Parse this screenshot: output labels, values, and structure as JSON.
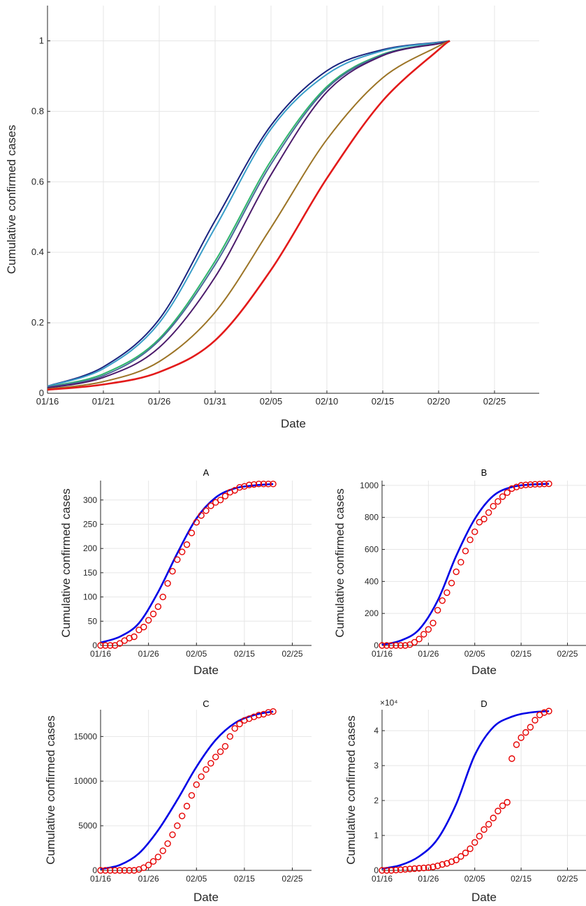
{
  "chart_data": [
    {
      "id": "main",
      "type": "line",
      "xlabel": "Date",
      "ylabel": "Cumulative confirmed cases",
      "x_ticks": [
        "01/16",
        "01/21",
        "01/26",
        "01/31",
        "02/05",
        "02/10",
        "02/15",
        "02/20",
        "02/25"
      ],
      "y_ticks": [
        "0",
        "0.2",
        "0.4",
        "0.6",
        "0.8",
        "1"
      ],
      "xlim": [
        "01/16",
        "02/29"
      ],
      "ylim": [
        0,
        1.1
      ],
      "grid": true,
      "series": [
        {
          "color": "#1a237e",
          "x": [
            "01/16",
            "01/21",
            "01/26",
            "01/31",
            "02/05",
            "02/10",
            "02/15",
            "02/20",
            "02/21"
          ],
          "values": [
            0.02,
            0.075,
            0.21,
            0.49,
            0.76,
            0.915,
            0.975,
            0.996,
            1.0
          ]
        },
        {
          "color": "#3a9ec9",
          "x": [
            "01/16",
            "01/21",
            "01/26",
            "01/31",
            "02/05",
            "02/10",
            "02/15",
            "02/20",
            "02/21"
          ],
          "values": [
            0.02,
            0.07,
            0.2,
            0.47,
            0.75,
            0.905,
            0.972,
            0.995,
            1.0
          ]
        },
        {
          "color": "#2db56b",
          "x": [
            "01/16",
            "01/21",
            "01/26",
            "01/31",
            "02/05",
            "02/10",
            "02/15",
            "02/20",
            "02/21"
          ],
          "values": [
            0.018,
            0.055,
            0.155,
            0.375,
            0.66,
            0.87,
            0.962,
            0.993,
            1.0
          ]
        },
        {
          "color": "#4a6a9a",
          "x": [
            "01/16",
            "01/21",
            "01/26",
            "01/31",
            "02/05",
            "02/10",
            "02/15",
            "02/20",
            "02/21"
          ],
          "values": [
            0.018,
            0.05,
            0.15,
            0.365,
            0.65,
            0.865,
            0.96,
            0.993,
            1.0
          ]
        },
        {
          "color": "#4b1a6b",
          "x": [
            "01/16",
            "01/21",
            "01/26",
            "01/31",
            "02/05",
            "02/10",
            "02/15",
            "02/20",
            "02/21"
          ],
          "values": [
            0.015,
            0.045,
            0.13,
            0.33,
            0.62,
            0.855,
            0.958,
            0.992,
            1.0
          ]
        },
        {
          "color": "#9c7426",
          "x": [
            "01/16",
            "01/21",
            "01/26",
            "01/31",
            "02/05",
            "02/10",
            "02/15",
            "02/20",
            "02/21"
          ],
          "values": [
            0.012,
            0.033,
            0.09,
            0.23,
            0.47,
            0.72,
            0.895,
            0.985,
            1.0
          ]
        },
        {
          "color": "#e31a1a",
          "x": [
            "01/16",
            "01/21",
            "01/26",
            "01/31",
            "02/05",
            "02/10",
            "02/15",
            "02/20",
            "02/21"
          ],
          "values": [
            0.01,
            0.025,
            0.06,
            0.15,
            0.35,
            0.61,
            0.83,
            0.975,
            1.0
          ]
        }
      ]
    },
    {
      "id": "A",
      "type": "line+scatter",
      "title": "A",
      "xlabel": "Date",
      "ylabel": "Cumulative confirmed cases",
      "x_ticks": [
        "01/16",
        "01/26",
        "02/05",
        "02/15",
        "02/25"
      ],
      "y_ticks": [
        "0",
        "50",
        "100",
        "150",
        "200",
        "250",
        "300"
      ],
      "xlim": [
        "01/16",
        "02/29"
      ],
      "ylim": [
        0,
        340
      ],
      "fit": {
        "color": "#0000e6",
        "x": [
          "01/16",
          "01/20",
          "01/24",
          "01/28",
          "02/01",
          "02/05",
          "02/09",
          "02/13",
          "02/17",
          "02/21"
        ],
        "values": [
          6,
          18,
          46,
          110,
          190,
          262,
          305,
          324,
          330,
          333
        ]
      },
      "observed": {
        "color": "#e60000",
        "x": [
          "01/16",
          "01/17",
          "01/18",
          "01/19",
          "01/20",
          "01/21",
          "01/22",
          "01/23",
          "01/24",
          "01/25",
          "01/26",
          "01/27",
          "01/28",
          "01/29",
          "01/30",
          "01/31",
          "02/01",
          "02/02",
          "02/03",
          "02/04",
          "02/05",
          "02/06",
          "02/07",
          "02/08",
          "02/09",
          "02/10",
          "02/11",
          "02/12",
          "02/13",
          "02/14",
          "02/15",
          "02/16",
          "02/17",
          "02/18",
          "02/19",
          "02/20",
          "02/21"
        ],
        "values": [
          0,
          0,
          0,
          0,
          4,
          10,
          15,
          18,
          32,
          38,
          52,
          65,
          80,
          100,
          128,
          153,
          177,
          193,
          208,
          232,
          254,
          268,
          278,
          288,
          295,
          300,
          308,
          316,
          320,
          326,
          328,
          331,
          332,
          333,
          333,
          333,
          333
        ]
      }
    },
    {
      "id": "B",
      "type": "line+scatter",
      "title": "B",
      "xlabel": "Date",
      "ylabel": "Cumulative confirmed cases",
      "x_ticks": [
        "01/16",
        "01/26",
        "02/05",
        "02/15",
        "02/25"
      ],
      "y_ticks": [
        "0",
        "200",
        "400",
        "600",
        "800",
        "1000"
      ],
      "xlim": [
        "01/16",
        "02/29"
      ],
      "ylim": [
        0,
        1030
      ],
      "fit": {
        "color": "#0000e6",
        "x": [
          "01/16",
          "01/20",
          "01/24",
          "01/28",
          "02/01",
          "02/05",
          "02/09",
          "02/13",
          "02/17",
          "02/21"
        ],
        "values": [
          5,
          30,
          100,
          280,
          560,
          790,
          935,
          990,
          1005,
          1010
        ]
      },
      "observed": {
        "color": "#e60000",
        "x": [
          "01/16",
          "01/17",
          "01/18",
          "01/19",
          "01/20",
          "01/21",
          "01/22",
          "01/23",
          "01/24",
          "01/25",
          "01/26",
          "01/27",
          "01/28",
          "01/29",
          "01/30",
          "01/31",
          "02/01",
          "02/02",
          "02/03",
          "02/04",
          "02/05",
          "02/06",
          "02/07",
          "02/08",
          "02/09",
          "02/10",
          "02/11",
          "02/12",
          "02/13",
          "02/14",
          "02/15",
          "02/16",
          "02/17",
          "02/18",
          "02/19",
          "02/20",
          "02/21"
        ],
        "values": [
          0,
          0,
          0,
          0,
          0,
          0,
          5,
          20,
          40,
          70,
          100,
          140,
          220,
          280,
          330,
          390,
          460,
          520,
          590,
          660,
          710,
          770,
          790,
          830,
          870,
          900,
          930,
          955,
          980,
          990,
          1000,
          1003,
          1005,
          1007,
          1008,
          1009,
          1010
        ]
      }
    },
    {
      "id": "C",
      "type": "line+scatter",
      "title": "C",
      "xlabel": "Date",
      "ylabel": "Cumulative confirmed cases",
      "x_ticks": [
        "01/16",
        "01/26",
        "02/05",
        "02/15",
        "02/25"
      ],
      "y_ticks": [
        "0",
        "5000",
        "10000",
        "15000"
      ],
      "xlim": [
        "01/16",
        "02/29"
      ],
      "ylim": [
        0,
        18000
      ],
      "fit": {
        "color": "#0000e6",
        "x": [
          "01/16",
          "01/20",
          "01/24",
          "01/28",
          "02/01",
          "02/05",
          "02/09",
          "02/13",
          "02/17",
          "02/21"
        ],
        "values": [
          150,
          600,
          1900,
          4500,
          7900,
          11600,
          14600,
          16500,
          17400,
          17800
        ]
      },
      "observed": {
        "color": "#e60000",
        "x": [
          "01/16",
          "01/17",
          "01/18",
          "01/19",
          "01/20",
          "01/21",
          "01/22",
          "01/23",
          "01/24",
          "01/25",
          "01/26",
          "01/27",
          "01/28",
          "01/29",
          "01/30",
          "01/31",
          "02/01",
          "02/02",
          "02/03",
          "02/04",
          "02/05",
          "02/06",
          "02/07",
          "02/08",
          "02/09",
          "02/10",
          "02/11",
          "02/12",
          "02/13",
          "02/14",
          "02/15",
          "02/16",
          "02/17",
          "02/18",
          "02/19",
          "02/20",
          "02/21"
        ],
        "values": [
          0,
          0,
          0,
          0,
          0,
          0,
          0,
          0,
          100,
          300,
          600,
          1000,
          1500,
          2200,
          3000,
          4000,
          5000,
          6100,
          7200,
          8400,
          9600,
          10500,
          11300,
          12000,
          12700,
          13300,
          13900,
          15000,
          15900,
          16400,
          16800,
          17000,
          17200,
          17400,
          17500,
          17700,
          17800
        ]
      }
    },
    {
      "id": "D",
      "type": "line+scatter",
      "title": "D",
      "xlabel": "Date",
      "ylabel": "Cumulative confirmed cases",
      "x_ticks": [
        "01/16",
        "01/26",
        "02/05",
        "02/15",
        "02/25"
      ],
      "y_ticks": [
        "0",
        "1",
        "2",
        "3",
        "4"
      ],
      "y_multiplier": "×10⁴",
      "xlim": [
        "01/16",
        "02/29"
      ],
      "ylim": [
        0,
        4.6
      ],
      "fit": {
        "color": "#0000e6",
        "x": [
          "01/16",
          "01/20",
          "01/24",
          "01/28",
          "02/01",
          "02/05",
          "02/09",
          "02/13",
          "02/17",
          "02/21"
        ],
        "values": [
          0.05,
          0.15,
          0.4,
          0.9,
          1.9,
          3.3,
          4.1,
          4.4,
          4.52,
          4.56
        ]
      },
      "observed": {
        "color": "#e60000",
        "x": [
          "01/16",
          "01/17",
          "01/18",
          "01/19",
          "01/20",
          "01/21",
          "01/22",
          "01/23",
          "01/24",
          "01/25",
          "01/26",
          "01/27",
          "01/28",
          "01/29",
          "01/30",
          "01/31",
          "02/01",
          "02/02",
          "02/03",
          "02/04",
          "02/05",
          "02/06",
          "02/07",
          "02/08",
          "02/09",
          "02/10",
          "02/11",
          "02/12",
          "02/13",
          "02/14",
          "02/15",
          "02/16",
          "02/17",
          "02/18",
          "02/19",
          "02/20",
          "02/21"
        ],
        "values": [
          0,
          0,
          0,
          0.01,
          0.02,
          0.03,
          0.04,
          0.05,
          0.06,
          0.07,
          0.08,
          0.1,
          0.13,
          0.17,
          0.2,
          0.25,
          0.3,
          0.4,
          0.5,
          0.62,
          0.8,
          0.98,
          1.17,
          1.32,
          1.5,
          1.7,
          1.85,
          1.95,
          3.2,
          3.6,
          3.8,
          3.95,
          4.1,
          4.3,
          4.45,
          4.52,
          4.56
        ]
      }
    }
  ]
}
